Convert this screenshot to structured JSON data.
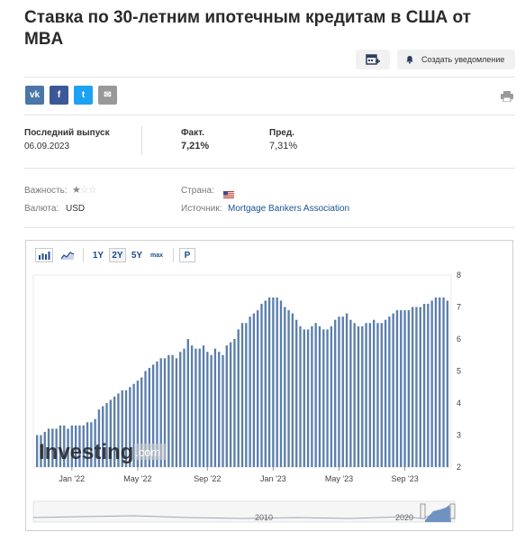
{
  "page": {
    "title": "Ставка по 30-летним ипотечным кредитам в США от MBA",
    "create_alert_label": "Создать уведомление"
  },
  "share": [
    {
      "name": "vk",
      "glyph": "vk",
      "color": "#4a76a8"
    },
    {
      "name": "facebook",
      "glyph": "f",
      "color": "#3b5998"
    },
    {
      "name": "twitter",
      "glyph": "t",
      "color": "#1da1f2"
    },
    {
      "name": "email",
      "glyph": "✉",
      "color": "#999999"
    }
  ],
  "release": {
    "latest_label": "Последний выпуск",
    "latest_date": "06.09.2023",
    "actual_label": "Факт.",
    "actual_value": "7,21%",
    "previous_label": "Пред.",
    "previous_value": "7,31%"
  },
  "info": {
    "importance_label": "Важность:",
    "importance_stars": 1,
    "importance_max": 3,
    "country_label": "Страна:",
    "currency_label": "Валюта:",
    "currency_value": "USD",
    "source_label": "Источник:",
    "source_value": "Mortgage Bankers Association"
  },
  "toolbar": {
    "ranges": [
      "1Y",
      "2Y",
      "5Y",
      "max"
    ],
    "selected_range": "2Y",
    "p_label": "P"
  },
  "watermark": {
    "brand": "Investing",
    "suffix": ".com"
  },
  "navigator": {
    "labels": [
      "2010",
      "2020"
    ]
  },
  "colors": {
    "bar": "#5b7fad",
    "accent": "#1a4d8c",
    "link": "#1a5494"
  },
  "chart_data": {
    "type": "bar",
    "title": "",
    "xlabel": "",
    "ylabel": "",
    "ylim": [
      2,
      8
    ],
    "y_ticks": [
      2,
      3,
      4,
      5,
      6,
      7,
      8
    ],
    "x_tick_labels": [
      "Jan '22",
      "May '22",
      "Sep '22",
      "Jan '23",
      "May '23",
      "Sep '23"
    ],
    "x_tick_positions": [
      9,
      26,
      44,
      61,
      78,
      95
    ],
    "values": [
      3.0,
      3.0,
      3.1,
      3.2,
      3.2,
      3.2,
      3.3,
      3.3,
      3.2,
      3.3,
      3.3,
      3.3,
      3.3,
      3.4,
      3.4,
      3.5,
      3.8,
      3.9,
      4.0,
      4.1,
      4.2,
      4.3,
      4.4,
      4.4,
      4.5,
      4.6,
      4.7,
      4.8,
      5.0,
      5.1,
      5.2,
      5.3,
      5.4,
      5.4,
      5.5,
      5.5,
      5.4,
      5.6,
      5.7,
      6.0,
      5.8,
      5.7,
      5.7,
      5.8,
      5.6,
      5.5,
      5.7,
      5.6,
      5.5,
      5.8,
      5.9,
      6.0,
      6.3,
      6.5,
      6.5,
      6.7,
      6.8,
      6.9,
      7.1,
      7.2,
      7.3,
      7.3,
      7.3,
      7.2,
      7.0,
      6.9,
      6.8,
      6.6,
      6.4,
      6.3,
      6.3,
      6.4,
      6.5,
      6.4,
      6.3,
      6.3,
      6.4,
      6.6,
      6.7,
      6.7,
      6.8,
      6.6,
      6.5,
      6.4,
      6.4,
      6.5,
      6.5,
      6.6,
      6.5,
      6.5,
      6.6,
      6.7,
      6.8,
      6.9,
      6.9,
      6.9,
      6.9,
      7.0,
      7.0,
      7.0,
      7.1,
      7.1,
      7.2,
      7.3,
      7.3,
      7.3,
      7.2
    ]
  }
}
